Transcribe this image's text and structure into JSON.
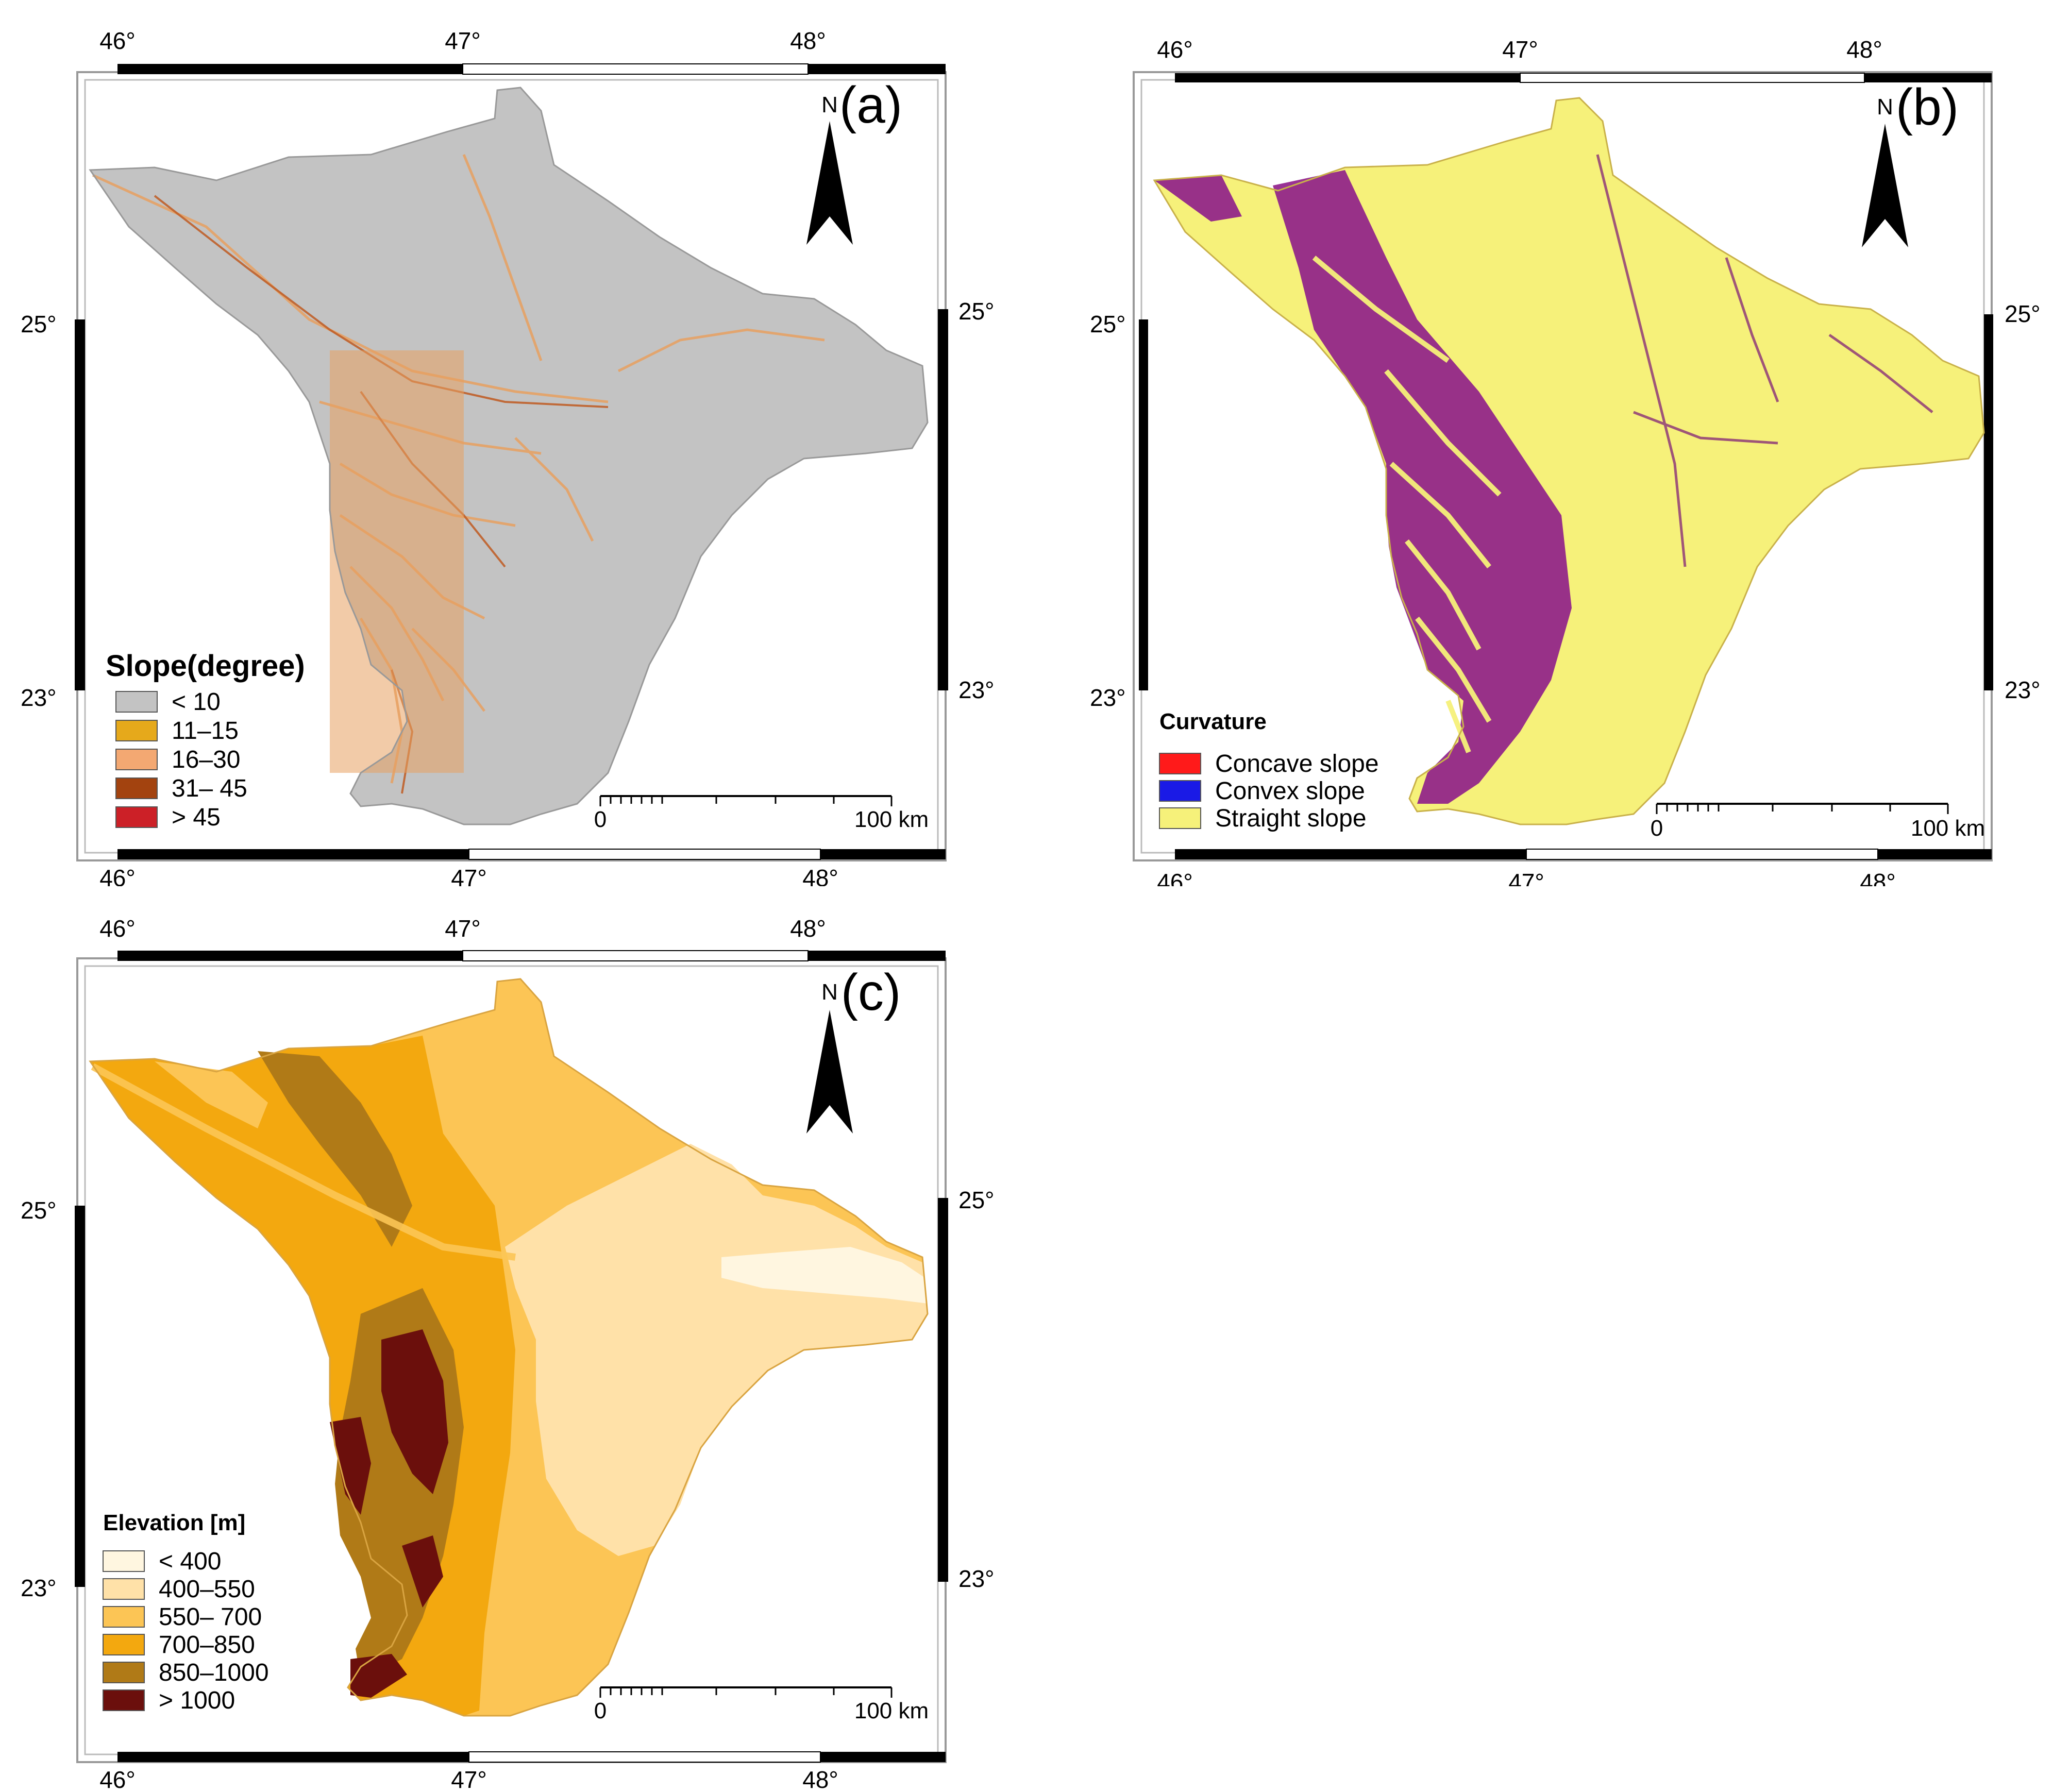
{
  "panels": [
    {
      "id": "a",
      "label": "(a)",
      "north_label": "N",
      "lon_ticks": [
        "46°",
        "47°",
        "48°"
      ],
      "lat_ticks": [
        "25°",
        "23°"
      ],
      "scale": {
        "start": "0",
        "end": "100 km"
      },
      "legend": {
        "title": "Slope(degree)",
        "items": [
          {
            "label": "< 10",
            "color": "#c3c3c3"
          },
          {
            "label": "11–15",
            "color": "#e6a91b"
          },
          {
            "label": "16–30",
            "color": "#f3a872"
          },
          {
            "label": "31– 45",
            "color": "#a3430f"
          },
          {
            "label": "> 45",
            "color": "#cc2027"
          }
        ]
      }
    },
    {
      "id": "b",
      "label": "(b)",
      "north_label": "N",
      "lon_ticks": [
        "46°",
        "47°",
        "48°"
      ],
      "lat_ticks": [
        "25°",
        "23°"
      ],
      "scale": {
        "start": "0",
        "end": "100 km"
      },
      "legend": {
        "title": "Curvature",
        "items": [
          {
            "label": "Concave slope",
            "color": "#ff1a1a"
          },
          {
            "label": "Convex slope",
            "color": "#1a1ae6"
          },
          {
            "label": "Straight slope",
            "color": "#f6f17a"
          }
        ]
      }
    },
    {
      "id": "c",
      "label": "(c)",
      "north_label": "N",
      "lon_ticks": [
        "46°",
        "47°",
        "48°"
      ],
      "lat_ticks": [
        "25°",
        "23°"
      ],
      "scale": {
        "start": "0",
        "end": "100 km"
      },
      "legend": {
        "title": "Elevation [m]",
        "items": [
          {
            "label": "< 400",
            "color": "#fff6e0"
          },
          {
            "label": "400–550",
            "color": "#ffe1a8"
          },
          {
            "label": "550– 700",
            "color": "#fcc555"
          },
          {
            "label": "700–850",
            "color": "#f3a80f"
          },
          {
            "label": "850–1000",
            "color": "#b07a17"
          },
          {
            "label": "> 1000",
            "color": "#6b0f0c"
          }
        ]
      }
    }
  ],
  "map_colors": {
    "slope_texture": "#e8a060",
    "slope_river": "#c0602a",
    "curv_texture": "#8e1c8a",
    "curv_dark": "#7a1478"
  }
}
